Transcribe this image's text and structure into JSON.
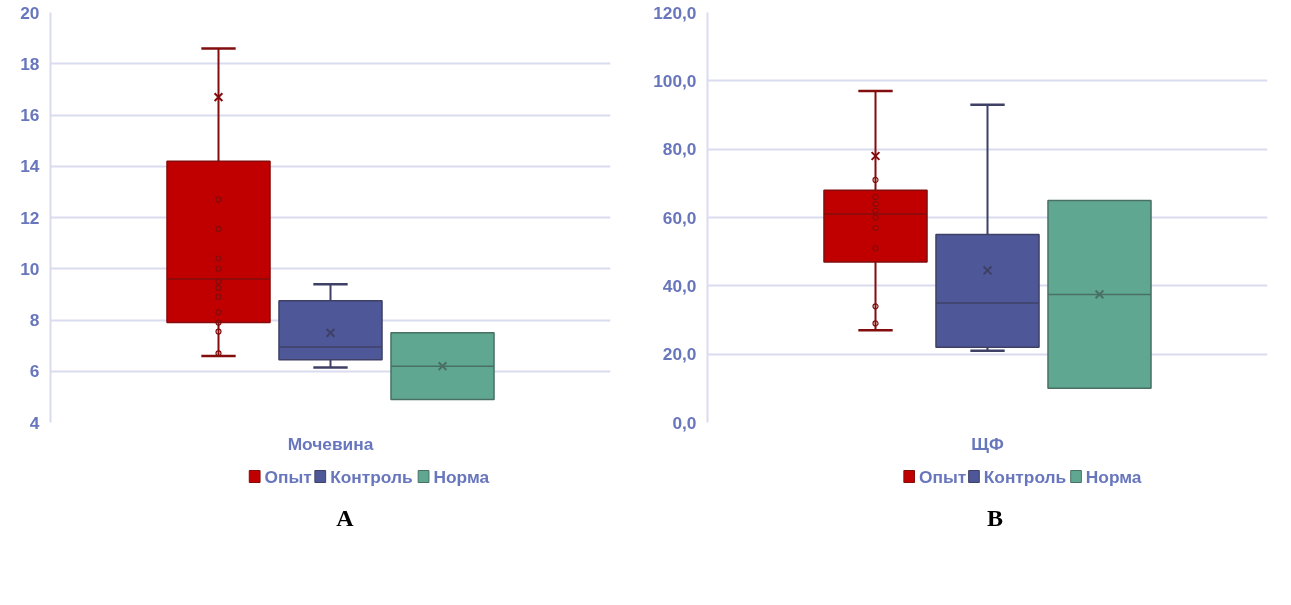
{
  "chart_data": [
    {
      "type": "box",
      "categories": [
        "Мочевина"
      ],
      "ylim": [
        4,
        20
      ],
      "yticks": [
        4,
        6,
        8,
        10,
        12,
        14,
        16,
        18,
        20
      ],
      "grid": "y",
      "legend": "bottom",
      "annotations": [
        "A"
      ],
      "series": [
        {
          "name": "Опыт",
          "color": "#c00000",
          "boxes": [
            {
              "low": 6.6,
              "q1": 7.9,
              "median": 9.6,
              "q3": 14.2,
              "high": 18.6,
              "mean": 16.7,
              "outliers": [
                12.7,
                11.55,
                10.4,
                10.0,
                9.5,
                9.25,
                8.9,
                8.3,
                7.9,
                7.55,
                6.7
              ]
            }
          ]
        },
        {
          "name": "Контроль",
          "color": "#4e5797",
          "boxes": [
            {
              "low": 6.15,
              "q1": 6.45,
              "median": 6.95,
              "q3": 8.75,
              "high": 9.4,
              "mean": 7.5
            }
          ]
        },
        {
          "name": "Норма",
          "color": "#5fa791",
          "boxes": [
            {
              "low": 4.9,
              "q1": 4.9,
              "median": 6.2,
              "q3": 7.5,
              "high": 7.5,
              "mean": 6.2
            }
          ]
        }
      ]
    },
    {
      "type": "box",
      "categories": [
        "ЩФ"
      ],
      "ylim": [
        0,
        120
      ],
      "yticks": [
        {
          "value": 0,
          "label": "0,0"
        },
        {
          "value": 20,
          "label": "20,0"
        },
        {
          "value": 40,
          "label": "40,0"
        },
        {
          "value": 60,
          "label": "60,0"
        },
        {
          "value": 80,
          "label": "80,0"
        },
        {
          "value": 100,
          "label": "100,0"
        },
        {
          "value": 120,
          "label": "120,0"
        }
      ],
      "grid": "y",
      "legend": "bottom",
      "annotations": [
        "B"
      ],
      "series": [
        {
          "name": "Опыт",
          "color": "#c00000",
          "boxes": [
            {
              "low": 27,
              "q1": 47,
              "median": 61,
              "q3": 68,
              "high": 97,
              "mean": 78,
              "outliers": [
                71,
                66,
                64,
                62,
                60,
                57,
                51,
                34,
                29
              ]
            }
          ]
        },
        {
          "name": "Контроль",
          "color": "#4e5797",
          "boxes": [
            {
              "low": 21,
              "q1": 22,
              "median": 35,
              "q3": 55,
              "high": 93,
              "mean": 44.5
            }
          ]
        },
        {
          "name": "Норма",
          "color": "#5fa791",
          "boxes": [
            {
              "low": 10,
              "q1": 10,
              "median": 37.5,
              "q3": 65,
              "high": 65,
              "mean": 37.5
            }
          ]
        }
      ]
    }
  ]
}
